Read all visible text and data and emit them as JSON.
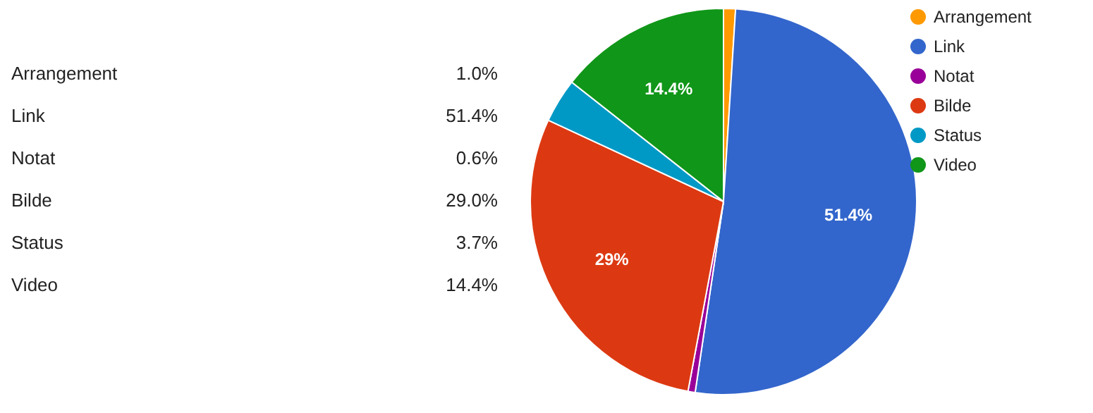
{
  "chart_data": {
    "type": "pie",
    "categories": [
      "Arrangement",
      "Link",
      "Notat",
      "Bilde",
      "Status",
      "Video"
    ],
    "values": [
      1.0,
      51.4,
      0.6,
      29.0,
      3.7,
      14.4
    ],
    "colors": [
      "#ff9900",
      "#3366cc",
      "#990099",
      "#dc3912",
      "#0099c6",
      "#109618"
    ],
    "value_labels": [
      null,
      "51.4%",
      null,
      "29%",
      null,
      "14.4%"
    ],
    "annotations": [
      "1.0%",
      "51.4%",
      "0.6%",
      "29.0%",
      "3.7%",
      "14.4%"
    ],
    "legend": "top right"
  }
}
